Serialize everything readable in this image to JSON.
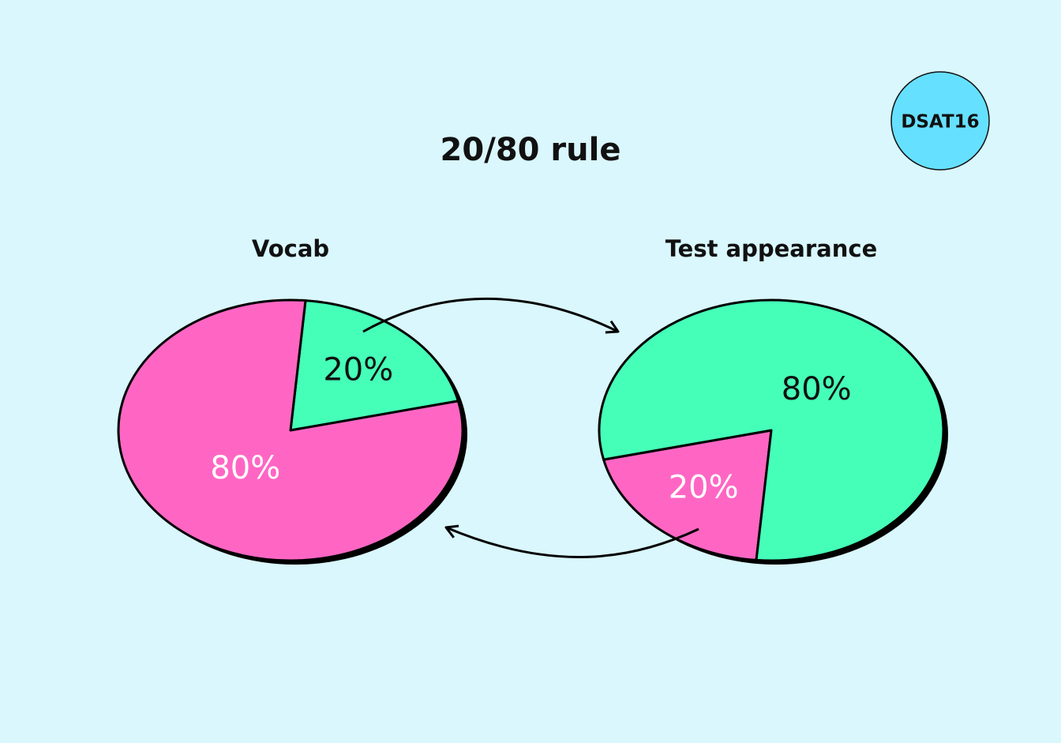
{
  "title": "20/80 rule",
  "badge": "DSAT16",
  "chart_data": [
    {
      "type": "pie",
      "title": "Vocab",
      "values": [
        20,
        80
      ],
      "value_labels": [
        "20%",
        "80%"
      ],
      "colors": [
        "#45ffb8",
        "#ff66c4"
      ],
      "label_colors": [
        "#111111",
        "#ffffff"
      ]
    },
    {
      "type": "pie",
      "title": "Test appearance",
      "values": [
        20,
        80
      ],
      "value_labels": [
        "20%",
        "80%"
      ],
      "colors": [
        "#ff66c4",
        "#45ffb8"
      ],
      "label_colors": [
        "#ffffff",
        "#111111"
      ]
    }
  ]
}
